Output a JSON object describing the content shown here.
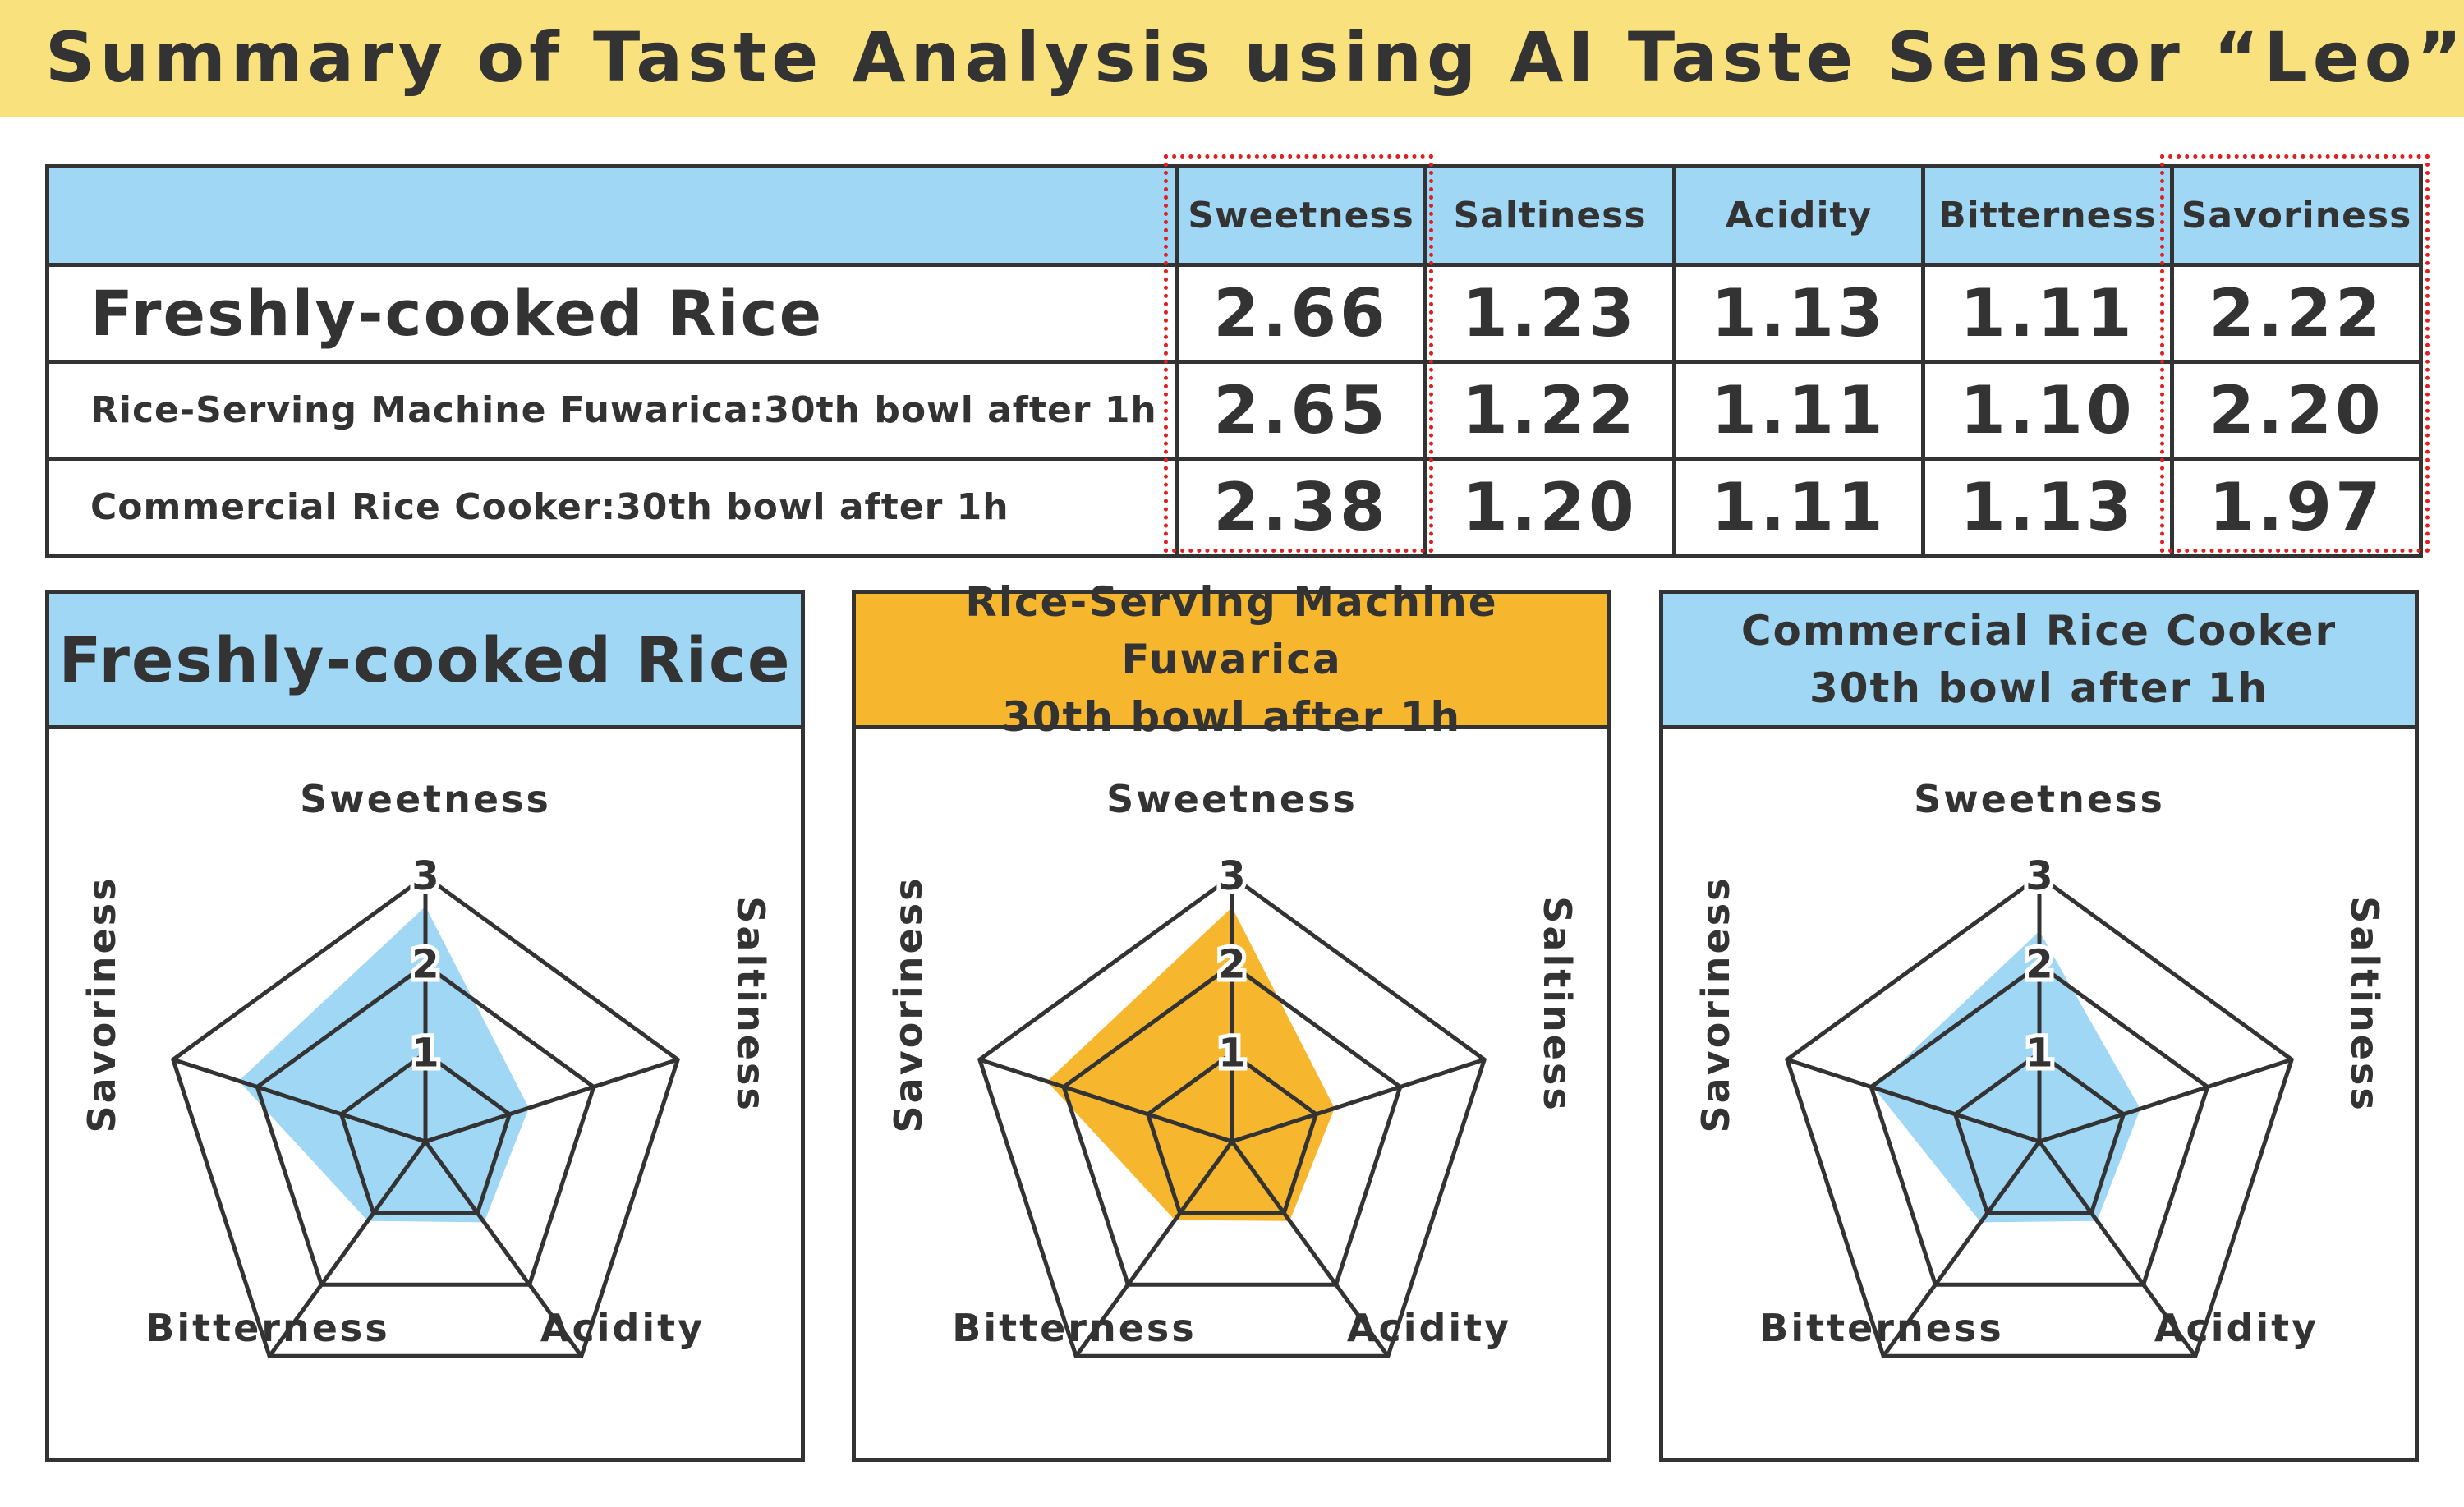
{
  "title": "Summary of Taste Analysis using AI Taste Sensor “Leo”",
  "colors": {
    "title_bg": "#f9e27d",
    "header_blue": "#a0d7f5",
    "fuwarica_orange": "#f6b72f",
    "highlight_red": "#e02020",
    "ink": "#333333"
  },
  "table": {
    "columns": [
      "Sweetness",
      "Saltiness",
      "Acidity",
      "Bitterness",
      "Savoriness"
    ],
    "rows": [
      {
        "label": "Freshly-cooked Rice",
        "values": [
          "2.66",
          "1.23",
          "1.13",
          "1.11",
          "2.22"
        ]
      },
      {
        "label": "Rice-Serving Machine Fuwarica:30th bowl after 1h",
        "values": [
          "2.65",
          "1.22",
          "1.11",
          "1.10",
          "2.20"
        ]
      },
      {
        "label": "Commercial Rice Cooker:30th bowl after 1h",
        "values": [
          "2.38",
          "1.20",
          "1.11",
          "1.13",
          "1.97"
        ]
      }
    ]
  },
  "panels": [
    {
      "title_lines": [
        "Freshly-cooked Rice"
      ],
      "header_color": "#a0d7f5"
    },
    {
      "title_lines": [
        "Rice-Serving Machine Fuwarica",
        "30th bowl after 1h"
      ],
      "header_color": "#f6b72f"
    },
    {
      "title_lines": [
        "Commercial Rice Cooker",
        "30th bowl after 1h"
      ],
      "header_color": "#a0d7f5"
    }
  ],
  "chart_data": [
    {
      "type": "radar",
      "title": "Freshly-cooked Rice",
      "axes": [
        "Sweetness",
        "Saltiness",
        "Acidity",
        "Bitterness",
        "Savoriness"
      ],
      "ticks": [
        "1",
        "2",
        "3"
      ],
      "range": [
        0,
        3
      ],
      "values": [
        2.66,
        1.23,
        1.13,
        1.11,
        2.22
      ],
      "fill": "#a0d7f5"
    },
    {
      "type": "radar",
      "title": "Rice-Serving Machine Fuwarica 30th bowl after 1h",
      "axes": [
        "Sweetness",
        "Saltiness",
        "Acidity",
        "Bitterness",
        "Savoriness"
      ],
      "ticks": [
        "1",
        "2",
        "3"
      ],
      "range": [
        0,
        3
      ],
      "values": [
        2.65,
        1.22,
        1.11,
        1.1,
        2.2
      ],
      "fill": "#f6b72f"
    },
    {
      "type": "radar",
      "title": "Commercial Rice Cooker 30th bowl after 1h",
      "axes": [
        "Sweetness",
        "Saltiness",
        "Acidity",
        "Bitterness",
        "Savoriness"
      ],
      "ticks": [
        "1",
        "2",
        "3"
      ],
      "range": [
        0,
        3
      ],
      "values": [
        2.38,
        1.2,
        1.11,
        1.13,
        1.97
      ],
      "fill": "#a0d7f5"
    }
  ]
}
